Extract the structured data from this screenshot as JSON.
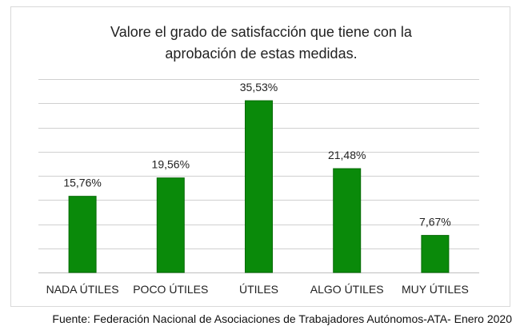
{
  "chart_data": {
    "type": "bar",
    "title_lines": [
      "Valore el grado de satisfacción que tiene con la",
      "aprobación de estas medidas."
    ],
    "categories": [
      "NADA ÚTILES",
      "POCO ÚTILES",
      "ÚTILES",
      "ALGO ÚTILES",
      "MUY ÚTILES"
    ],
    "values": [
      15.76,
      19.56,
      35.53,
      21.48,
      7.67
    ],
    "value_labels": [
      "15,76%",
      "19,56%",
      "35,53%",
      "21,48%",
      "7,67%"
    ],
    "ylim": [
      0,
      40
    ],
    "grid": true,
    "legend": "none",
    "bar_color": "#0a8a0a",
    "bar_edge_color": "#076b07",
    "grid_color": "#d0d0d0"
  },
  "source_note": "Fuente: Federación Nacional de Asociaciones de Trabajadores Autónomos-ATA- Enero 2020"
}
